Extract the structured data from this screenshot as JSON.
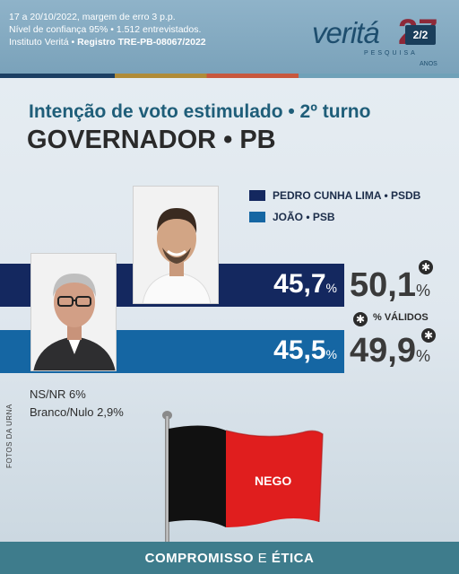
{
  "header": {
    "meta_line1": "17 a 20/10/2022, margem de erro 3 p.p.",
    "meta_line2": "Nível de confiança 95% • 1.512 entrevistados.",
    "meta_line3_plain": "Instituto Veritá • ",
    "meta_line3_bold": "Registro TRE-PB-08067/2022",
    "logo_name": "veritá",
    "logo_sub": "PESQUISA",
    "logo_years": "ANOS",
    "logo_number": "27",
    "page_badge": "2/2"
  },
  "title": {
    "line1": "Intenção de voto estimulado • 2º turno",
    "line2": "GOVERNADOR • PB"
  },
  "legend": [
    {
      "label": "PEDRO CUNHA LIMA • PSDB",
      "color": "#14285f"
    },
    {
      "label": "JOÃO • PSB",
      "color": "#1566a3"
    }
  ],
  "results": {
    "pedro": {
      "value": "45,7",
      "valid": "50,1",
      "unit": "%"
    },
    "joao": {
      "value": "45,5",
      "valid": "49,9",
      "unit": "%"
    }
  },
  "valid_label": "% VÁLIDOS",
  "star_symbol": "✱",
  "other": {
    "nsnr": "NS/NR 6%",
    "branco": "Branco/Nulo 2,9%"
  },
  "photo_credit": "FOTOS DA URNA",
  "flag_text": "NEGO",
  "footer": {
    "part1": "COMPROMISSO",
    "part2": " E ",
    "part3": "ÉTICA"
  }
}
